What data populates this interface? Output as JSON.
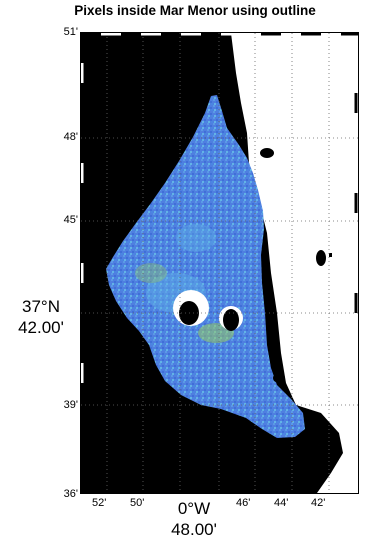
{
  "title": "Pixels inside Mar Menor using outline",
  "lat_ticks": [
    "51'",
    "48'",
    "45'",
    "39'",
    "36'"
  ],
  "lat_center": {
    "deg": "37°N",
    "min": "42.00'"
  },
  "lon_ticks": [
    "52'",
    "50'",
    "46'",
    "44'",
    "42'"
  ],
  "lon_center": {
    "deg": "0°W",
    "min": "48.00'"
  },
  "colors": {
    "land": "#000000",
    "sea": "#ffffff",
    "lagoon": "#4f7fe0",
    "lagoon_light": "#5fb0e8",
    "lagoon_accent": "#9ccf55",
    "grid": "#666666"
  }
}
